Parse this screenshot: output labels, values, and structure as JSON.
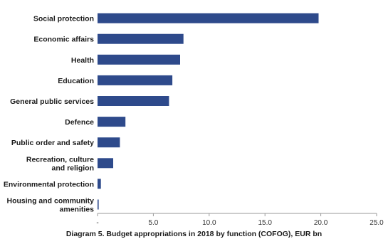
{
  "chart_data": {
    "type": "bar",
    "orientation": "horizontal",
    "categories": [
      "Social protection",
      "Economic affairs",
      "Health",
      "Education",
      "General public services",
      "Defence",
      "Public order and safety",
      "Recreation, culture and religion",
      "Environmental protection",
      "Housing and community amenities"
    ],
    "category_lines": [
      [
        "Social protection"
      ],
      [
        "Economic affairs"
      ],
      [
        "Health"
      ],
      [
        "Education"
      ],
      [
        "General public services"
      ],
      [
        "Defence"
      ],
      [
        "Public order and safety"
      ],
      [
        "Recreation, culture",
        "and religion"
      ],
      [
        "Environmental protection"
      ],
      [
        "Housing and community",
        "amenities"
      ]
    ],
    "values": [
      19.8,
      7.7,
      7.4,
      6.7,
      6.4,
      2.5,
      2.0,
      1.4,
      0.3,
      0.1
    ],
    "xlim": [
      0,
      25
    ],
    "x_ticks": [
      0,
      5,
      10,
      15,
      20,
      25
    ],
    "x_tick_labels": [
      "-",
      "5.0",
      "10.0",
      "15.0",
      "20.0",
      "25.0"
    ],
    "grid": false,
    "legend": "none",
    "bar_color": "#2e4a8b",
    "title": "Diagram 5. Budget appropriations in 2018 by function (COFOG), EUR bn"
  }
}
